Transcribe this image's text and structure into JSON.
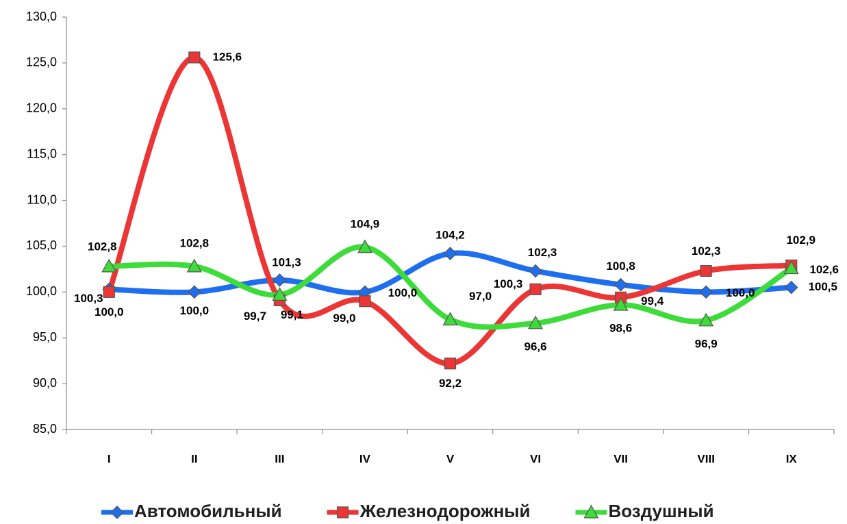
{
  "chart_data": {
    "type": "line",
    "categories": [
      "I",
      "II",
      "III",
      "IV",
      "V",
      "VI",
      "VII",
      "VIII",
      "IX"
    ],
    "series": [
      {
        "name": "Автомобильный",
        "color": "#1e6ff0",
        "label_color": "#1b2a66",
        "marker": "diamond",
        "values": [
          100.3,
          100.0,
          101.3,
          100.0,
          104.2,
          102.3,
          100.8,
          100.0,
          100.5
        ],
        "value_labels": [
          "100,3",
          "100,0",
          "101,3",
          "100,0",
          "104,2",
          "102,3",
          "100,8",
          "100,0",
          "100,5"
        ]
      },
      {
        "name": "Железнодорожный",
        "color": "#ec3535",
        "label_color": "#e8201c",
        "marker": "square",
        "values": [
          100.0,
          125.6,
          99.1,
          99.0,
          92.2,
          100.3,
          99.4,
          102.3,
          102.9
        ],
        "value_labels": [
          "100,0",
          "125,6",
          "99,1",
          "99,0",
          "92,2",
          "100,3",
          "99,4",
          "102,3",
          "102,9"
        ]
      },
      {
        "name": "Воздушный",
        "color": "#3ddc3a",
        "label_color": "#1fb04a",
        "marker": "triangle",
        "values": [
          102.8,
          102.8,
          99.7,
          104.9,
          97.0,
          96.6,
          98.6,
          96.9,
          102.6
        ],
        "value_labels": [
          "102,8",
          "102,8",
          "99,7",
          "104,9",
          "97,0",
          "96,6",
          "98,6",
          "96,9",
          "102,6"
        ]
      }
    ],
    "ylim": [
      85,
      130
    ],
    "yticks": [
      {
        "value": 85,
        "label": "85,0"
      },
      {
        "value": 90,
        "label": "90,0"
      },
      {
        "value": 95,
        "label": "95,0"
      },
      {
        "value": 100,
        "label": "100,0"
      },
      {
        "value": 105,
        "label": "105,0"
      },
      {
        "value": 110,
        "label": "110,0"
      },
      {
        "value": 115,
        "label": "115,0"
      },
      {
        "value": 120,
        "label": "120,0"
      },
      {
        "value": 125,
        "label": "125,0"
      },
      {
        "value": 130,
        "label": "130,0"
      }
    ],
    "grid": false,
    "legend": "bottom"
  }
}
